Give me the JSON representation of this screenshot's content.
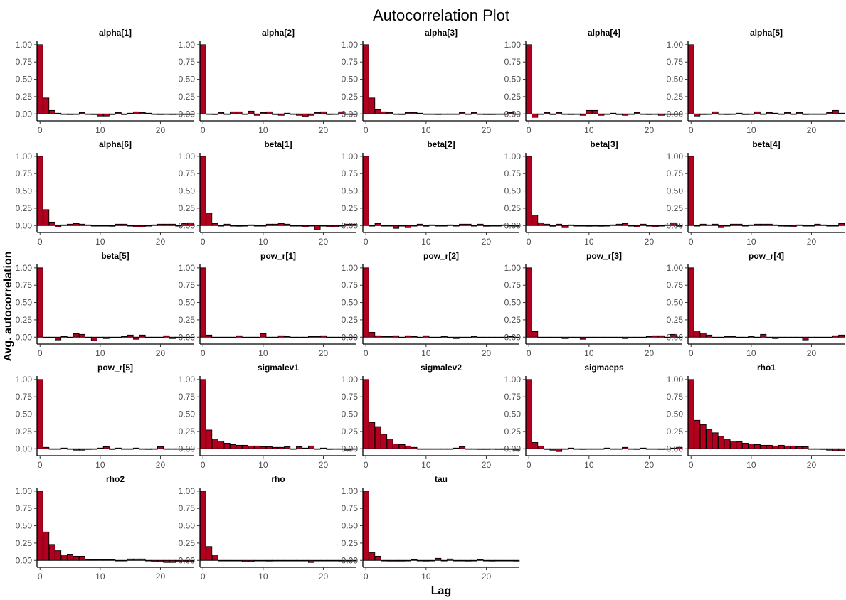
{
  "chart_data": {
    "type": "bar",
    "title": "Autocorrelation Plot",
    "xlabel": "Lag",
    "ylabel": "Avg. autocorrelation",
    "xlim": [
      -0.5,
      25.5
    ],
    "ylim": [
      -0.1,
      1.05
    ],
    "xticks": [
      "0",
      "10",
      "20"
    ],
    "yticks": [
      "0.00",
      "0.25",
      "0.50",
      "0.75",
      "1.00"
    ],
    "grid": false,
    "bar_color": "#b2001f",
    "lags": [
      0,
      1,
      2,
      3,
      4,
      5,
      6,
      7,
      8,
      9,
      10,
      11,
      12,
      13,
      14,
      15,
      16,
      17,
      18,
      19,
      20,
      21,
      22,
      23,
      24,
      25
    ],
    "panels": [
      {
        "name": "alpha[1]",
        "values": [
          1.0,
          0.23,
          0.05,
          0.01,
          0.0,
          -0.01,
          0.0,
          0.02,
          0.0,
          -0.01,
          -0.03,
          -0.03,
          -0.01,
          0.02,
          -0.01,
          0.01,
          0.03,
          0.02,
          0.01,
          0.0,
          -0.01,
          0.0,
          -0.01,
          0.0,
          -0.01,
          -0.01
        ]
      },
      {
        "name": "alpha[2]",
        "values": [
          1.0,
          0.0,
          -0.01,
          0.02,
          0.0,
          0.03,
          0.03,
          0.0,
          0.04,
          -0.02,
          0.02,
          0.03,
          -0.01,
          -0.02,
          0.01,
          0.0,
          -0.02,
          -0.04,
          -0.02,
          0.02,
          0.03,
          -0.01,
          0.0,
          0.03,
          0.0,
          -0.01
        ]
      },
      {
        "name": "alpha[3]",
        "values": [
          1.0,
          0.23,
          0.06,
          0.03,
          0.02,
          0.0,
          -0.01,
          0.02,
          0.02,
          0.01,
          0.0,
          0.0,
          -0.01,
          0.0,
          0.0,
          0.0,
          0.02,
          0.0,
          0.02,
          0.0,
          -0.01,
          -0.01,
          0.0,
          0.0,
          0.02,
          0.0
        ]
      },
      {
        "name": "alpha[4]",
        "values": [
          1.0,
          -0.05,
          0.0,
          0.02,
          -0.01,
          0.02,
          0.0,
          -0.01,
          0.0,
          -0.02,
          0.05,
          0.05,
          -0.02,
          0.0,
          0.01,
          -0.01,
          -0.02,
          0.0,
          0.02,
          0.0,
          -0.01,
          0.0,
          -0.02,
          0.0,
          -0.01,
          0.0
        ]
      },
      {
        "name": "alpha[5]",
        "values": [
          1.0,
          -0.03,
          -0.01,
          0.0,
          0.03,
          0.0,
          -0.01,
          0.0,
          0.01,
          -0.01,
          0.0,
          0.03,
          0.0,
          0.02,
          0.01,
          0.0,
          0.02,
          0.0,
          0.02,
          -0.01,
          0.0,
          0.0,
          0.0,
          0.02,
          0.05,
          0.01
        ]
      },
      {
        "name": "alpha[6]",
        "values": [
          1.0,
          0.23,
          0.05,
          -0.02,
          0.01,
          0.02,
          0.03,
          0.02,
          0.01,
          0.0,
          0.0,
          0.0,
          -0.01,
          0.02,
          0.02,
          0.0,
          -0.02,
          -0.02,
          0.0,
          0.01,
          0.02,
          0.02,
          0.02,
          0.0,
          0.03,
          0.04
        ]
      },
      {
        "name": "beta[1]",
        "values": [
          1.0,
          0.18,
          0.03,
          0.0,
          0.02,
          0.0,
          -0.01,
          0.0,
          0.01,
          0.0,
          0.0,
          0.02,
          0.02,
          0.03,
          0.02,
          0.0,
          0.0,
          -0.02,
          0.0,
          -0.06,
          0.0,
          -0.02,
          -0.02,
          0.0,
          0.02,
          0.02
        ]
      },
      {
        "name": "beta[2]",
        "values": [
          1.0,
          0.0,
          0.03,
          0.0,
          0.0,
          -0.04,
          0.0,
          -0.03,
          0.0,
          0.02,
          -0.01,
          0.01,
          0.0,
          0.0,
          0.01,
          0.0,
          0.02,
          0.02,
          0.0,
          0.02,
          -0.01,
          0.0,
          0.0,
          0.01,
          0.0,
          -0.01
        ]
      },
      {
        "name": "beta[3]",
        "values": [
          1.0,
          0.15,
          0.04,
          0.02,
          -0.01,
          0.02,
          -0.03,
          0.01,
          0.0,
          0.0,
          -0.01,
          0.0,
          -0.01,
          0.0,
          0.01,
          0.02,
          0.03,
          0.0,
          -0.02,
          0.02,
          0.0,
          -0.02,
          0.0,
          0.01,
          0.04,
          -0.01
        ]
      },
      {
        "name": "beta[4]",
        "values": [
          1.0,
          0.0,
          0.02,
          0.01,
          0.02,
          -0.03,
          0.0,
          0.02,
          0.02,
          0.0,
          0.01,
          0.02,
          0.02,
          0.02,
          0.01,
          0.0,
          -0.01,
          -0.02,
          0.01,
          0.0,
          0.0,
          0.02,
          0.01,
          0.0,
          0.0,
          0.03
        ]
      },
      {
        "name": "beta[5]",
        "values": [
          1.0,
          0.0,
          0.0,
          -0.04,
          0.01,
          0.0,
          0.05,
          0.04,
          0.0,
          -0.05,
          0.0,
          -0.02,
          0.0,
          -0.01,
          0.01,
          0.03,
          -0.03,
          0.03,
          0.0,
          0.0,
          -0.01,
          0.02,
          -0.02,
          0.0,
          0.0,
          -0.01
        ]
      },
      {
        "name": "pow_r[1]",
        "values": [
          1.0,
          0.03,
          0.0,
          0.0,
          0.0,
          0.0,
          0.02,
          -0.01,
          0.0,
          0.0,
          0.05,
          0.0,
          0.0,
          0.02,
          0.01,
          0.0,
          -0.01,
          0.0,
          0.01,
          0.01,
          0.02,
          0.0,
          -0.01,
          0.0,
          -0.01,
          -0.01
        ]
      },
      {
        "name": "pow_r[2]",
        "values": [
          1.0,
          0.07,
          0.02,
          0.01,
          0.01,
          0.02,
          0.0,
          0.02,
          0.01,
          0.0,
          0.02,
          0.0,
          0.0,
          0.01,
          0.0,
          -0.02,
          -0.01,
          0.0,
          0.01,
          0.0,
          -0.01,
          0.0,
          -0.01,
          0.0,
          0.01,
          0.0
        ]
      },
      {
        "name": "pow_r[3]",
        "values": [
          1.0,
          0.08,
          0.0,
          -0.01,
          -0.01,
          -0.01,
          -0.02,
          0.0,
          -0.01,
          -0.03,
          0.0,
          0.0,
          -0.01,
          0.0,
          0.0,
          -0.01,
          -0.02,
          -0.01,
          0.0,
          0.0,
          0.01,
          0.02,
          0.02,
          0.0,
          0.04,
          0.0
        ]
      },
      {
        "name": "pow_r[4]",
        "values": [
          1.0,
          0.09,
          0.06,
          0.03,
          0.0,
          -0.01,
          0.01,
          0.01,
          0.0,
          0.0,
          0.01,
          0.0,
          0.04,
          0.0,
          -0.02,
          0.0,
          0.0,
          0.0,
          -0.01,
          -0.04,
          -0.01,
          0.0,
          0.0,
          0.0,
          0.02,
          0.03
        ]
      },
      {
        "name": "pow_r[5]",
        "values": [
          1.0,
          0.02,
          0.0,
          0.0,
          0.01,
          0.0,
          -0.02,
          -0.02,
          -0.01,
          0.0,
          0.01,
          0.03,
          -0.01,
          0.01,
          0.0,
          0.0,
          0.01,
          0.0,
          -0.01,
          0.0,
          0.03,
          0.0,
          0.0,
          0.0,
          -0.01,
          -0.01
        ]
      },
      {
        "name": "sigmalev1",
        "values": [
          1.0,
          0.27,
          0.14,
          0.11,
          0.08,
          0.06,
          0.05,
          0.05,
          0.04,
          0.04,
          0.03,
          0.03,
          0.02,
          0.02,
          0.03,
          0.0,
          0.03,
          0.01,
          0.04,
          0.0,
          0.01,
          -0.01,
          0.0,
          0.0,
          -0.02,
          0.0
        ]
      },
      {
        "name": "sigmalev2",
        "values": [
          1.0,
          0.38,
          0.32,
          0.21,
          0.14,
          0.07,
          0.06,
          0.04,
          0.02,
          0.0,
          0.0,
          0.0,
          0.0,
          0.0,
          0.0,
          0.01,
          0.03,
          0.0,
          0.0,
          -0.01,
          -0.01,
          0.0,
          -0.01,
          -0.01,
          -0.01,
          -0.02
        ]
      },
      {
        "name": "sigmaeps",
        "values": [
          1.0,
          0.09,
          0.04,
          -0.01,
          -0.02,
          -0.04,
          0.0,
          0.01,
          0.0,
          -0.01,
          0.0,
          0.0,
          0.0,
          0.01,
          0.0,
          0.0,
          0.02,
          0.0,
          -0.01,
          0.01,
          0.0,
          0.0,
          -0.01,
          0.0,
          0.01,
          0.02
        ]
      },
      {
        "name": "rho1",
        "values": [
          1.0,
          0.41,
          0.35,
          0.28,
          0.23,
          0.18,
          0.13,
          0.11,
          0.1,
          0.08,
          0.07,
          0.06,
          0.05,
          0.05,
          0.04,
          0.05,
          0.04,
          0.04,
          0.03,
          0.03,
          0.0,
          0.0,
          -0.01,
          -0.02,
          -0.03,
          -0.03
        ]
      },
      {
        "name": "rho2",
        "values": [
          1.0,
          0.41,
          0.23,
          0.14,
          0.08,
          0.09,
          0.06,
          0.06,
          0.01,
          0.01,
          0.01,
          0.01,
          0.01,
          0.0,
          0.0,
          0.02,
          0.02,
          0.02,
          0.0,
          -0.02,
          -0.02,
          -0.03,
          -0.03,
          -0.02,
          -0.02,
          -0.02
        ]
      },
      {
        "name": "rho",
        "values": [
          1.0,
          0.2,
          0.08,
          0.0,
          0.0,
          0.0,
          0.0,
          -0.02,
          -0.02,
          0.0,
          0.0,
          -0.01,
          0.0,
          0.0,
          0.0,
          0.0,
          0.0,
          0.0,
          -0.03,
          0.0,
          0.0,
          0.0,
          0.0,
          -0.01,
          -0.01,
          0.0
        ]
      },
      {
        "name": "tau",
        "values": [
          1.0,
          0.11,
          0.06,
          0.0,
          -0.01,
          -0.01,
          -0.01,
          0.0,
          0.01,
          0.0,
          -0.01,
          0.0,
          0.03,
          0.0,
          0.02,
          0.0,
          0.0,
          -0.01,
          0.0,
          0.01,
          0.0,
          -0.01,
          0.0,
          0.0,
          0.0,
          -0.01
        ]
      }
    ]
  }
}
